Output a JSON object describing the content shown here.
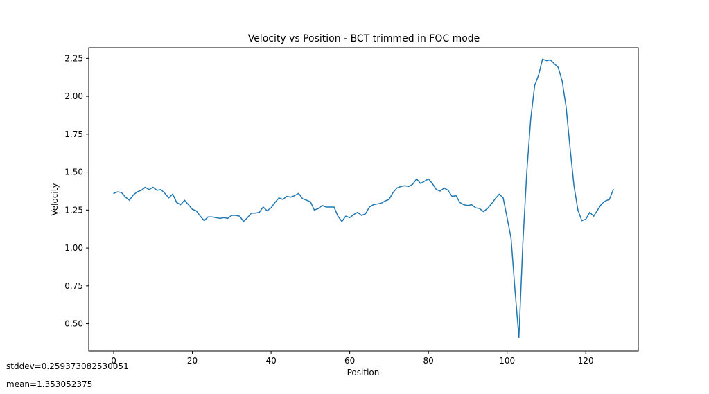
{
  "chart_data": {
    "type": "line",
    "title": "Velocity vs Position - BCT trimmed in FOC mode",
    "xlabel": "Position",
    "ylabel": "Velocity",
    "xlim": [
      -6.35,
      133.35
    ],
    "ylim": [
      0.32,
      2.32
    ],
    "xticks": [
      0,
      20,
      40,
      60,
      80,
      100,
      120
    ],
    "yticks": [
      0.5,
      0.75,
      1.0,
      1.25,
      1.5,
      1.75,
      2.0,
      2.25
    ],
    "xtick_labels": [
      "0",
      "20",
      "40",
      "60",
      "80",
      "100",
      "120"
    ],
    "ytick_labels": [
      "0.50",
      "0.75",
      "1.00",
      "1.25",
      "1.50",
      "1.75",
      "2.00",
      "2.25"
    ],
    "grid": false,
    "line_color": "#1f77b4",
    "series": [
      {
        "x": [
          0,
          1,
          2,
          3,
          4,
          5,
          6,
          7,
          8,
          9,
          10,
          11,
          12,
          13,
          14,
          15,
          16,
          17,
          18,
          19,
          20,
          21,
          22,
          23,
          24,
          25,
          26,
          27,
          28,
          29,
          30,
          31,
          32,
          33,
          34,
          35,
          36,
          37,
          38,
          39,
          40,
          41,
          42,
          43,
          44,
          45,
          46,
          47,
          48,
          49,
          50,
          51,
          52,
          53,
          54,
          55,
          56,
          57,
          58,
          59,
          60,
          61,
          62,
          63,
          64,
          65,
          66,
          67,
          68,
          69,
          70,
          71,
          72,
          73,
          74,
          75,
          76,
          77,
          78,
          79,
          80,
          81,
          82,
          83,
          84,
          85,
          86,
          87,
          88,
          89,
          90,
          91,
          92,
          93,
          94,
          95,
          96,
          97,
          98,
          99,
          100,
          101,
          102,
          103,
          104,
          105,
          106,
          107,
          108,
          109,
          110,
          111,
          112,
          113,
          114,
          115,
          116,
          117,
          118,
          119,
          120,
          121,
          122,
          123,
          124,
          125,
          126,
          127
        ],
        "values": [
          1.36,
          1.37,
          1.365,
          1.335,
          1.315,
          1.35,
          1.37,
          1.38,
          1.4,
          1.385,
          1.4,
          1.38,
          1.385,
          1.36,
          1.33,
          1.355,
          1.3,
          1.285,
          1.315,
          1.285,
          1.255,
          1.245,
          1.21,
          1.18,
          1.205,
          1.205,
          1.2,
          1.195,
          1.2,
          1.195,
          1.215,
          1.215,
          1.21,
          1.175,
          1.2,
          1.23,
          1.23,
          1.235,
          1.27,
          1.245,
          1.265,
          1.3,
          1.33,
          1.32,
          1.34,
          1.335,
          1.345,
          1.36,
          1.325,
          1.315,
          1.305,
          1.25,
          1.26,
          1.28,
          1.27,
          1.27,
          1.27,
          1.21,
          1.175,
          1.21,
          1.2,
          1.22,
          1.235,
          1.215,
          1.225,
          1.27,
          1.285,
          1.29,
          1.295,
          1.31,
          1.32,
          1.365,
          1.395,
          1.405,
          1.41,
          1.405,
          1.42,
          1.455,
          1.425,
          1.44,
          1.455,
          1.425,
          1.385,
          1.375,
          1.395,
          1.38,
          1.34,
          1.345,
          1.3,
          1.285,
          1.28,
          1.285,
          1.265,
          1.26,
          1.24,
          1.26,
          1.29,
          1.325,
          1.355,
          1.33,
          1.2,
          1.065,
          0.725,
          0.41,
          1.03,
          1.5,
          1.85,
          2.07,
          2.14,
          2.245,
          2.235,
          2.24,
          2.215,
          2.19,
          2.1,
          1.93,
          1.66,
          1.41,
          1.25,
          1.18,
          1.19,
          1.235,
          1.21,
          1.25,
          1.29,
          1.31,
          1.32,
          1.385
        ]
      }
    ]
  },
  "annotations": {
    "stddev": "stddev=0.259373082530051",
    "mean": "mean=1.353052375"
  }
}
